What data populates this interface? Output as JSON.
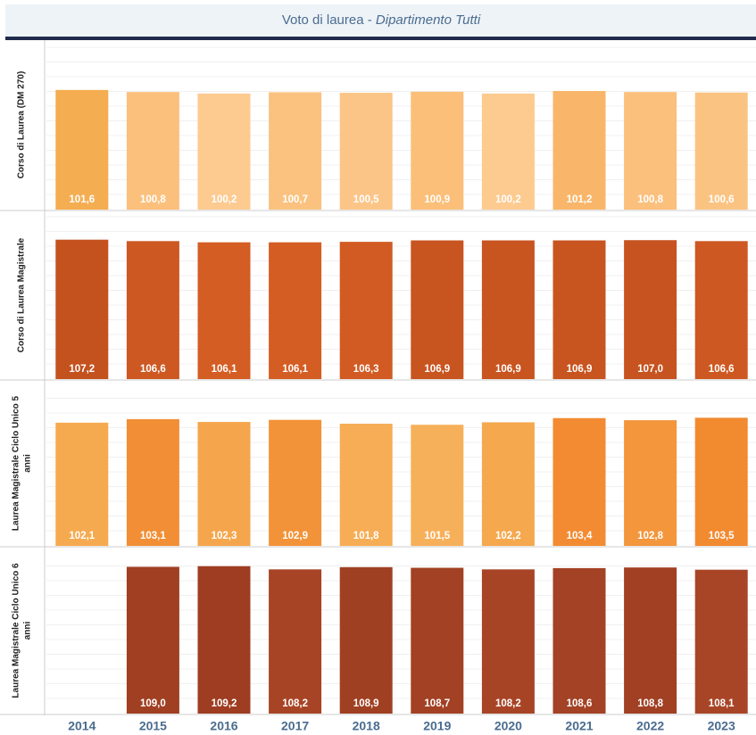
{
  "chart_data": {
    "type": "bar",
    "title": "Voto di laurea -",
    "subtitle": "Dipartimento Tutti",
    "categories": [
      "2014",
      "2015",
      "2016",
      "2017",
      "2018",
      "2019",
      "2020",
      "2021",
      "2022",
      "2023"
    ],
    "series": [
      {
        "name": "Corso di Laurea (DM 270)",
        "ylim": [
          55,
          121
        ],
        "values": [
          101.6,
          100.8,
          100.2,
          100.7,
          100.5,
          100.9,
          100.2,
          101.2,
          100.8,
          100.6
        ],
        "value_labels": [
          "101,6",
          "100,8",
          "100,2",
          "100,7",
          "100,5",
          "100,9",
          "100,2",
          "101,2",
          "100,8",
          "100,6"
        ],
        "colors": [
          "#f5ad52",
          "#fbc07c",
          "#fdca90",
          "#fbc27f",
          "#fcc588",
          "#fbbf79",
          "#fdca90",
          "#f9b66a",
          "#fbc07c",
          "#fbc382"
        ]
      },
      {
        "name": "Corso di Laurea Magistrale",
        "ylim": [
          49,
          119
        ],
        "values": [
          107.2,
          106.6,
          106.1,
          106.1,
          106.3,
          106.9,
          106.9,
          106.9,
          107.0,
          106.6
        ],
        "value_labels": [
          "107,2",
          "106,6",
          "106,1",
          "106,1",
          "106,3",
          "106,9",
          "106,9",
          "106,9",
          "107,0",
          "106,6"
        ],
        "colors": [
          "#c4521f",
          "#cd5822",
          "#d45d24",
          "#d45d24",
          "#d15b23",
          "#c85420",
          "#c85420",
          "#c85420",
          "#c65320",
          "#cd5822"
        ]
      },
      {
        "name": "Laurea Magistrale Ciclo Unico 5 anni",
        "ylim": [
          67,
          114
        ],
        "values": [
          102.1,
          103.1,
          102.3,
          102.9,
          101.8,
          101.5,
          102.2,
          103.4,
          102.8,
          103.5
        ],
        "value_labels": [
          "102,1",
          "103,1",
          "102,3",
          "102,9",
          "101,8",
          "101,5",
          "102,2",
          "103,4",
          "102,8",
          "103,5"
        ],
        "colors": [
          "#f6aa50",
          "#f28f36",
          "#f5a64c",
          "#f39339",
          "#f6ad55",
          "#f7b05a",
          "#f5a84e",
          "#f28b32",
          "#f3963c",
          "#f28a30"
        ]
      },
      {
        "name": "Laurea Magistrale Ciclo Unico 6 anni",
        "ylim": [
          63,
          115
        ],
        "values": [
          null,
          109.0,
          109.2,
          108.2,
          108.9,
          108.7,
          108.2,
          108.6,
          108.8,
          108.1
        ],
        "value_labels": [
          null,
          "109,0",
          "109,2",
          "108,2",
          "108,9",
          "108,7",
          "108,2",
          "108,6",
          "108,8",
          "108,1"
        ],
        "colors": [
          null,
          "#a03f22",
          "#9e3d21",
          "#a84426",
          "#a04022",
          "#a24123",
          "#a84426",
          "#a34224",
          "#a14023",
          "#a94527"
        ]
      }
    ]
  }
}
